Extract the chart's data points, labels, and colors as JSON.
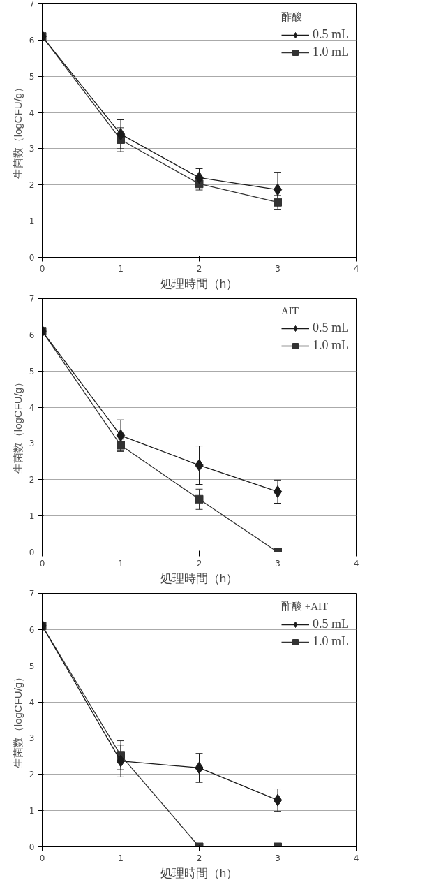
{
  "chart_data": [
    {
      "type": "line",
      "legend_title": "酢酸",
      "xlabel": "処理時間（h）",
      "ylabel": "生菌数（logCFU/g）",
      "x": [
        0,
        1,
        2,
        3
      ],
      "xlim": [
        0,
        4
      ],
      "xticks": [
        0,
        1,
        2,
        3,
        4
      ],
      "ylim": [
        0,
        7
      ],
      "yticks": [
        0,
        1,
        2,
        3,
        4,
        5,
        6,
        7
      ],
      "grid": "y",
      "legend": "top right",
      "series": [
        {
          "name": "0.5 mL",
          "color": "#1a1a1a",
          "marker": "diamond",
          "values": [
            6.1,
            3.4,
            2.2,
            1.87
          ],
          "errors": [
            null,
            0.4,
            0.25,
            0.48
          ]
        },
        {
          "name": "1.0 mL",
          "color": "#333333",
          "marker": "square",
          "values": [
            6.1,
            3.25,
            2.03,
            1.52
          ],
          "errors": [
            null,
            0.33,
            0.17,
            0.19
          ]
        }
      ]
    },
    {
      "type": "line",
      "legend_title": "AIT",
      "xlabel": "処理時間（h）",
      "ylabel": "生菌数（logCFU/g）",
      "x": [
        0,
        1,
        2,
        3
      ],
      "xlim": [
        0,
        4
      ],
      "xticks": [
        0,
        1,
        2,
        3,
        4
      ],
      "ylim": [
        0,
        7
      ],
      "yticks": [
        0,
        1,
        2,
        3,
        4,
        5,
        6,
        7
      ],
      "grid": "y",
      "legend": "top right",
      "series": [
        {
          "name": "0.5 mL",
          "color": "#1a1a1a",
          "marker": "diamond",
          "values": [
            6.1,
            3.22,
            2.4,
            1.67
          ],
          "errors": [
            null,
            0.43,
            0.53,
            0.32
          ]
        },
        {
          "name": "1.0 mL",
          "color": "#333333",
          "marker": "square",
          "values": [
            6.1,
            2.95,
            1.46,
            0
          ],
          "errors": [
            null,
            0.17,
            0.28,
            null
          ]
        }
      ]
    },
    {
      "type": "line",
      "legend_title": "酢酸 +AIT",
      "xlabel": "処理時間（h）",
      "ylabel": "生菌数（logCFU/g）",
      "x": [
        0,
        1,
        2,
        3
      ],
      "xlim": [
        0,
        4
      ],
      "xticks": [
        0,
        1,
        2,
        3,
        4
      ],
      "ylim": [
        0,
        7
      ],
      "yticks": [
        0,
        1,
        2,
        3,
        4,
        5,
        6,
        7
      ],
      "grid": "y",
      "legend": "top right",
      "series": [
        {
          "name": "0.5 mL",
          "color": "#1a1a1a",
          "marker": "diamond",
          "values": [
            6.1,
            2.37,
            2.18,
            1.29
          ],
          "errors": [
            null,
            0.44,
            0.4,
            0.31
          ]
        },
        {
          "name": "1.0 mL",
          "color": "#333333",
          "marker": "square",
          "values": [
            6.1,
            2.53,
            0,
            0
          ],
          "errors": [
            null,
            0.4,
            null,
            null
          ]
        }
      ]
    }
  ]
}
